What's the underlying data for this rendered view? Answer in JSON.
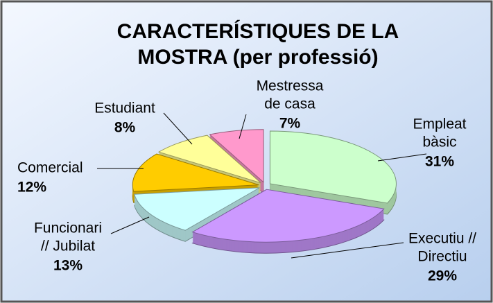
{
  "chart_data": {
    "type": "pie3d",
    "title": [
      "CARACTERÍSTIQUES DE LA",
      "MOSTRA (per professió)"
    ],
    "categories": [
      [
        "Empleat",
        "bàsic"
      ],
      [
        "Executiu //",
        "Directiu"
      ],
      [
        "Funcionari",
        "// Jubilat"
      ],
      [
        "Comercial"
      ],
      [
        "Estudiant"
      ],
      [
        "Mestressa",
        "de casa"
      ]
    ],
    "values": [
      31,
      29,
      13,
      12,
      8,
      7
    ],
    "value_labels": [
      "31%",
      "29%",
      "13%",
      "12%",
      "8%",
      "7%"
    ],
    "colors": [
      "#ccffcc",
      "#cc99ff",
      "#ccffff",
      "#ffcc00",
      "#ffff99",
      "#ff99cc"
    ]
  }
}
